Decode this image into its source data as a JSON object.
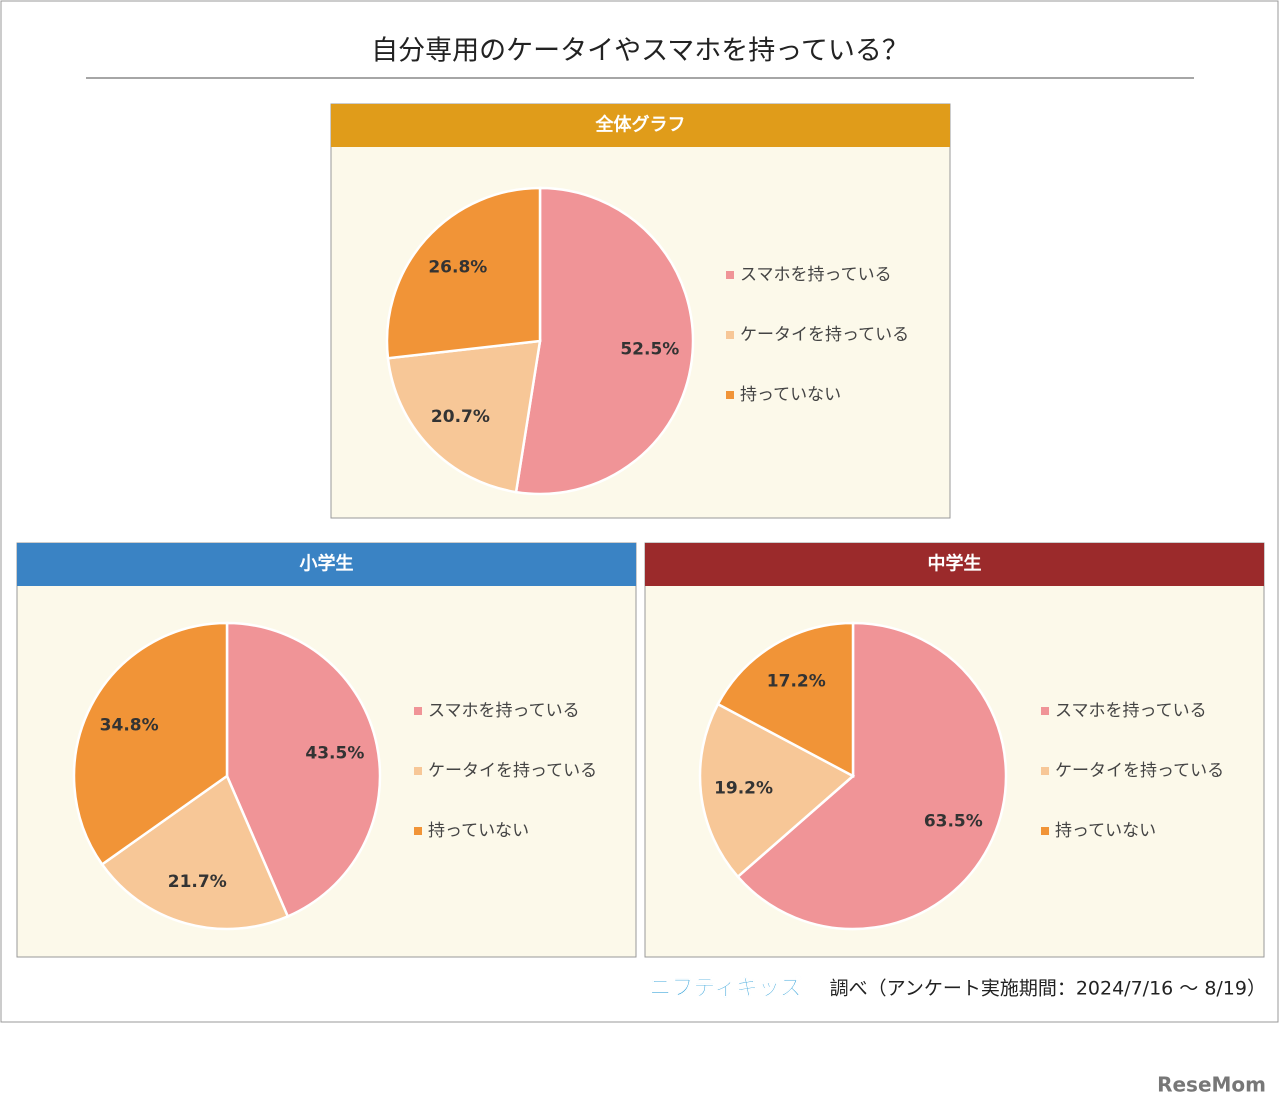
{
  "title": "自分専用のケータイやスマホを持っている？",
  "source_logo": "ニフティキッズ",
  "source_text": "調べ（アンケート実施期間：2024/7/16 〜 8/19）",
  "watermark": "ReseMom",
  "chart_data": [
    {
      "type": "pie",
      "title": "全体グラフ",
      "header_color": "#e09c1a",
      "categories": [
        "スマホを持っている",
        "ケータイを持っている",
        "持っていない"
      ],
      "values": [
        52.5,
        20.7,
        26.8
      ],
      "value_labels": [
        "52.5%",
        "20.7%",
        "26.8%"
      ],
      "colors": [
        "#f09497",
        "#f7c797",
        "#f19437"
      ]
    },
    {
      "type": "pie",
      "title": "小学生",
      "header_color": "#3a83c4",
      "categories": [
        "スマホを持っている",
        "ケータイを持っている",
        "持っていない"
      ],
      "values": [
        43.5,
        21.7,
        34.8
      ],
      "value_labels": [
        "43.5%",
        "21.7%",
        "34.8%"
      ],
      "colors": [
        "#f09497",
        "#f7c797",
        "#f19437"
      ]
    },
    {
      "type": "pie",
      "title": "中学生",
      "header_color": "#9b2a2b",
      "categories": [
        "スマホを持っている",
        "ケータイを持っている",
        "持っていない"
      ],
      "values": [
        63.5,
        19.2,
        17.2
      ],
      "value_labels": [
        "63.5%",
        "19.2%",
        "17.2%"
      ],
      "colors": [
        "#f09497",
        "#f7c797",
        "#f19437"
      ]
    }
  ]
}
